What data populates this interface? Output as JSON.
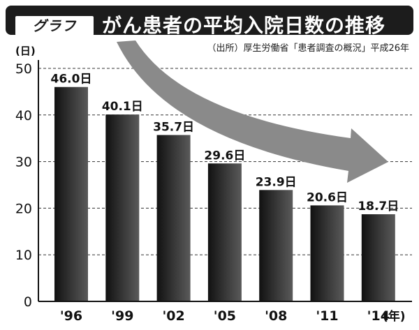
{
  "title": {
    "badge": "グラフ",
    "text": "がん患者の平均入院日数の推移"
  },
  "source": "（出所）厚生労働省「患者調査の概況」平成26年",
  "chart_data": {
    "type": "bar",
    "categories": [
      "'96",
      "'99",
      "'02",
      "'05",
      "'08",
      "'11",
      "'14"
    ],
    "values": [
      46.0,
      40.1,
      35.7,
      29.6,
      23.9,
      20.6,
      18.7
    ],
    "data_labels": [
      "46.0日",
      "40.1日",
      "35.7日",
      "29.6日",
      "23.9日",
      "20.6日",
      "18.7日"
    ],
    "yticks": [
      0,
      10,
      20,
      30,
      40,
      50
    ],
    "ylim": [
      0,
      50
    ],
    "ylabel": "(日)",
    "xlabel": "(年)",
    "grid": "horizontal dashed",
    "annotation": "downward trend arrow (gray)",
    "colors": {
      "bar_dark": "#111111",
      "bar_light": "#5a5a5a",
      "arrow": "#8a8a8a"
    }
  }
}
